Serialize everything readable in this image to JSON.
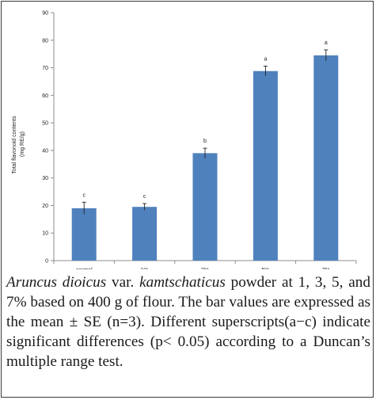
{
  "chart_data": {
    "type": "bar",
    "categories": [
      "control",
      "1%",
      "3%",
      "5%",
      "7%"
    ],
    "values": [
      19,
      19.5,
      39,
      68.8,
      74.5
    ],
    "errors": [
      2.2,
      1.2,
      1.8,
      1.8,
      2.0
    ],
    "significance": [
      "c",
      "c",
      "b",
      "a",
      "a"
    ],
    "ylabel_line1": "Total flavonoid contents",
    "ylabel_line2": "(mg RE/g)",
    "ylim": [
      0,
      90
    ],
    "yticks": [
      "0",
      "10",
      "20",
      "30",
      "40",
      "50",
      "60",
      "70",
      "80",
      "90"
    ],
    "bar_color": "#4f81bd",
    "grid": false,
    "legend": "none"
  },
  "caption": {
    "italic_1": "Aruncus dioicus",
    "text_1": " var. ",
    "italic_2": "kamtschaticus",
    "text_2": " powder at 1, 3, 5, and 7% based on 400 g of flour. The bar values are expressed as the mean ± SE (n=3). Different superscripts(a−c) indicate significant differences (p< 0.05) according to a Duncan’s multiple range test."
  }
}
